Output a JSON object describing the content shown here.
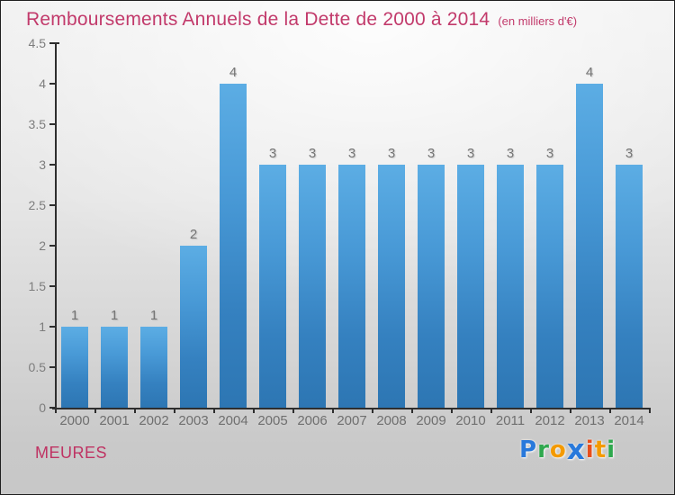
{
  "header": {
    "title": "Remboursements Annuels de la Dette de 2000 à 2014",
    "subtitle": "(en milliers d'€)"
  },
  "footer": {
    "commune": "MEURES",
    "logo_letters": [
      {
        "ch": "P",
        "color": "#2979db"
      },
      {
        "ch": "r",
        "color": "#2fa84e"
      },
      {
        "ch": "o",
        "color": "#f49a00"
      },
      {
        "ch": "x",
        "color": "#2979db",
        "bold": true
      },
      {
        "ch": "i",
        "color": "#e84e1b"
      },
      {
        "ch": "t",
        "color": "#f49a00"
      },
      {
        "ch": "i",
        "color": "#2fa84e"
      }
    ]
  },
  "colors": {
    "title": "#c23a6b",
    "commune": "#bf3363",
    "bar_gradient_top": "#5cade4",
    "bar_gradient_bottom": "#2d76b3",
    "axis": "#2e2e2e",
    "tick_label": "#7d7d7d",
    "value_label": "#757575",
    "background_top": "#fafafa",
    "background_bottom": "#c8c8c8"
  },
  "chart_data": {
    "type": "bar",
    "title": "Remboursements Annuels de la Dette de 2000 à 2014",
    "subtitle": "(en milliers d'€)",
    "unit": "milliers d'€",
    "categories": [
      "2000",
      "2001",
      "2002",
      "2003",
      "2004",
      "2005",
      "2006",
      "2007",
      "2008",
      "2009",
      "2010",
      "2011",
      "2012",
      "2013",
      "2014"
    ],
    "values": [
      1,
      1,
      1,
      2,
      4,
      3,
      3,
      3,
      3,
      3,
      3,
      3,
      3,
      4,
      3
    ],
    "xlabel": "",
    "ylabel": "",
    "ylim": [
      0,
      4.5
    ],
    "yticks": [
      0,
      0.5,
      1,
      1.5,
      2,
      2.5,
      3,
      3.5,
      4,
      4.5
    ],
    "grid": false,
    "legend": "none",
    "value_labels_shown": true
  }
}
